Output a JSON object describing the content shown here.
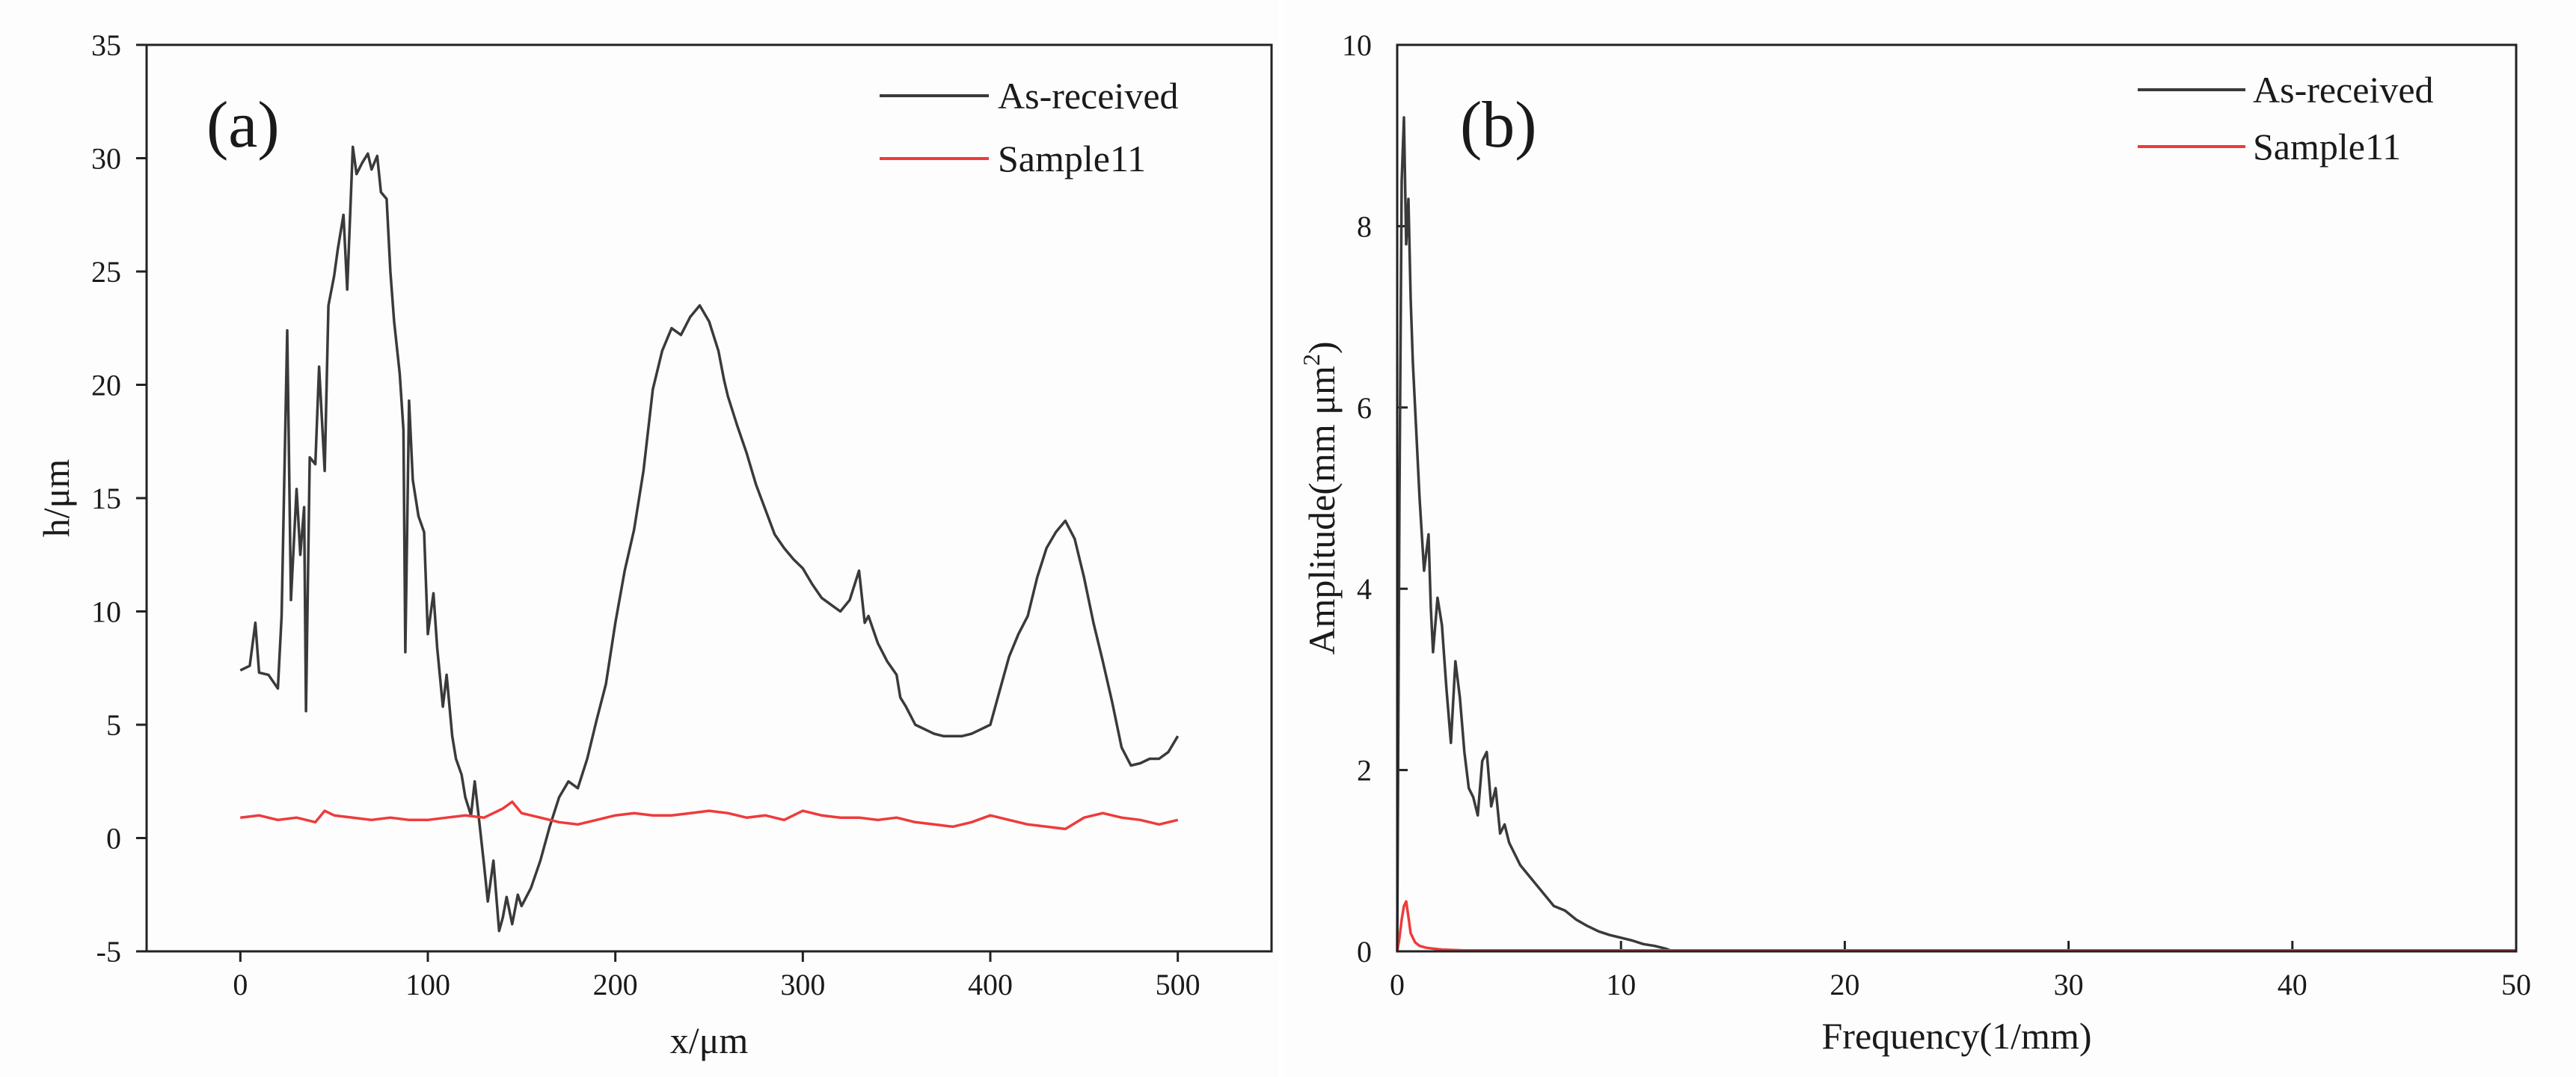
{
  "chart_data": [
    {
      "type": "line",
      "panel_label": "(a)",
      "title": "",
      "xlabel": "x/μm",
      "ylabel": "h/μm",
      "xlim": [
        -50,
        550
      ],
      "ylim": [
        -5,
        35
      ],
      "xticks": [
        0,
        100,
        200,
        300,
        400,
        500
      ],
      "yticks": [
        -5,
        0,
        5,
        10,
        15,
        20,
        25,
        30,
        35
      ],
      "legend_position": "top-right",
      "series": [
        {
          "name": "As-received",
          "color": "#3a3a3a",
          "x": [
            0,
            5,
            8,
            10,
            15,
            20,
            22,
            25,
            27,
            30,
            32,
            34,
            35,
            37,
            40,
            42,
            45,
            47,
            50,
            52,
            55,
            57,
            60,
            62,
            65,
            68,
            70,
            73,
            75,
            78,
            80,
            82,
            85,
            87,
            88,
            90,
            92,
            95,
            98,
            100,
            103,
            105,
            108,
            110,
            113,
            115,
            118,
            120,
            123,
            125,
            128,
            130,
            132,
            135,
            138,
            140,
            142,
            145,
            148,
            150,
            155,
            160,
            165,
            170,
            175,
            180,
            185,
            190,
            195,
            200,
            205,
            210,
            215,
            220,
            225,
            230,
            235,
            240,
            245,
            250,
            255,
            258,
            260,
            265,
            270,
            275,
            280,
            285,
            290,
            295,
            300,
            305,
            310,
            315,
            320,
            325,
            330,
            333,
            335,
            340,
            345,
            350,
            352,
            355,
            360,
            365,
            370,
            375,
            380,
            385,
            390,
            395,
            400,
            405,
            410,
            415,
            420,
            425,
            430,
            435,
            440,
            445,
            450,
            455,
            460,
            465,
            470,
            475,
            480,
            485,
            490,
            495,
            500
          ],
          "y": [
            7.4,
            7.6,
            9.5,
            7.3,
            7.2,
            6.6,
            9.8,
            22.4,
            10.5,
            15.4,
            12.5,
            14.6,
            5.6,
            16.8,
            16.5,
            20.8,
            16.2,
            23.5,
            24.8,
            26.0,
            27.5,
            24.2,
            30.5,
            29.3,
            29.8,
            30.2,
            29.5,
            30.1,
            28.5,
            28.2,
            25.0,
            22.8,
            20.5,
            18.0,
            8.2,
            19.3,
            15.8,
            14.2,
            13.5,
            9.0,
            10.8,
            8.4,
            5.8,
            7.2,
            4.5,
            3.5,
            2.8,
            1.8,
            1.0,
            2.5,
            0.3,
            -1.2,
            -2.8,
            -1.0,
            -4.1,
            -3.5,
            -2.6,
            -3.8,
            -2.5,
            -3.0,
            -2.2,
            -1.0,
            0.5,
            1.8,
            2.5,
            2.2,
            3.5,
            5.2,
            6.8,
            9.5,
            11.8,
            13.6,
            16.2,
            19.8,
            21.5,
            22.5,
            22.2,
            23.0,
            23.5,
            22.8,
            21.5,
            20.2,
            19.5,
            18.2,
            17.0,
            15.6,
            14.5,
            13.4,
            12.8,
            12.3,
            11.9,
            11.2,
            10.6,
            10.3,
            10.0,
            10.5,
            11.8,
            9.5,
            9.8,
            8.6,
            7.8,
            7.2,
            6.2,
            5.8,
            5.0,
            4.8,
            4.6,
            4.5,
            4.5,
            4.5,
            4.6,
            4.8,
            5.0,
            6.5,
            8.0,
            9.0,
            9.8,
            11.5,
            12.8,
            13.5,
            14.0,
            13.2,
            11.5,
            9.5,
            7.8,
            6.0,
            4.0,
            3.2,
            3.3,
            3.5,
            3.5,
            3.8,
            4.5
          ]
        },
        {
          "name": "Sample11",
          "color": "#ee3b3b",
          "x": [
            0,
            10,
            20,
            30,
            40,
            45,
            50,
            60,
            70,
            80,
            90,
            100,
            110,
            120,
            130,
            140,
            145,
            150,
            160,
            170,
            180,
            190,
            200,
            210,
            220,
            230,
            240,
            250,
            260,
            270,
            280,
            290,
            300,
            310,
            320,
            330,
            340,
            350,
            360,
            370,
            380,
            390,
            400,
            410,
            420,
            430,
            440,
            450,
            460,
            470,
            480,
            490,
            500
          ],
          "y": [
            0.9,
            1.0,
            0.8,
            0.9,
            0.7,
            1.2,
            1.0,
            0.9,
            0.8,
            0.9,
            0.8,
            0.8,
            0.9,
            1.0,
            0.9,
            1.3,
            1.6,
            1.1,
            0.9,
            0.7,
            0.6,
            0.8,
            1.0,
            1.1,
            1.0,
            1.0,
            1.1,
            1.2,
            1.1,
            0.9,
            1.0,
            0.8,
            1.2,
            1.0,
            0.9,
            0.9,
            0.8,
            0.9,
            0.7,
            0.6,
            0.5,
            0.7,
            1.0,
            0.8,
            0.6,
            0.5,
            0.4,
            0.9,
            1.1,
            0.9,
            0.8,
            0.6,
            0.8
          ]
        }
      ]
    },
    {
      "type": "line",
      "panel_label": "(b)",
      "title": "",
      "xlabel": "Frequency(1/mm)",
      "ylabel_main": "Amplitude(mm μm",
      "ylabel_sup": "2",
      "ylabel_close": ")",
      "xlim": [
        0,
        50
      ],
      "ylim": [
        0,
        10
      ],
      "xticks": [
        0,
        10,
        20,
        30,
        40,
        50
      ],
      "yticks": [
        0,
        2,
        4,
        6,
        8,
        10
      ],
      "legend_position": "top-right",
      "series": [
        {
          "name": "As-received",
          "color": "#3a3a3a",
          "x": [
            0,
            0.1,
            0.2,
            0.3,
            0.4,
            0.5,
            0.6,
            0.7,
            0.8,
            0.9,
            1.0,
            1.2,
            1.4,
            1.5,
            1.6,
            1.8,
            2.0,
            2.2,
            2.4,
            2.6,
            2.8,
            3.0,
            3.2,
            3.4,
            3.6,
            3.8,
            4.0,
            4.2,
            4.4,
            4.6,
            4.8,
            5.0,
            5.5,
            6.0,
            6.5,
            7.0,
            7.5,
            8.0,
            8.5,
            9.0,
            9.5,
            10.0,
            10.5,
            11.0,
            11.5,
            12.0,
            12.2,
            13,
            15,
            20,
            30,
            40,
            50
          ],
          "y": [
            0,
            5.0,
            8.5,
            9.2,
            7.8,
            8.3,
            7.2,
            6.5,
            6.0,
            5.5,
            5.0,
            4.2,
            4.6,
            3.8,
            3.3,
            3.9,
            3.6,
            2.9,
            2.3,
            3.2,
            2.8,
            2.2,
            1.8,
            1.7,
            1.5,
            2.1,
            2.2,
            1.6,
            1.8,
            1.3,
            1.4,
            1.2,
            0.95,
            0.8,
            0.65,
            0.5,
            0.45,
            0.35,
            0.28,
            0.22,
            0.18,
            0.15,
            0.12,
            0.08,
            0.06,
            0.03,
            0.01,
            0.01,
            0.01,
            0.01,
            0.01,
            0.01,
            0.01
          ]
        },
        {
          "name": "Sample11",
          "color": "#ee3b3b",
          "x": [
            0,
            0.1,
            0.2,
            0.3,
            0.4,
            0.5,
            0.6,
            0.8,
            1.0,
            1.3,
            1.6,
            2.0,
            3,
            5,
            10,
            20,
            30,
            40,
            50
          ],
          "y": [
            0,
            0.15,
            0.35,
            0.5,
            0.55,
            0.38,
            0.2,
            0.1,
            0.06,
            0.04,
            0.03,
            0.02,
            0.01,
            0.01,
            0.01,
            0.01,
            0.01,
            0.01,
            0.01
          ]
        }
      ]
    }
  ]
}
